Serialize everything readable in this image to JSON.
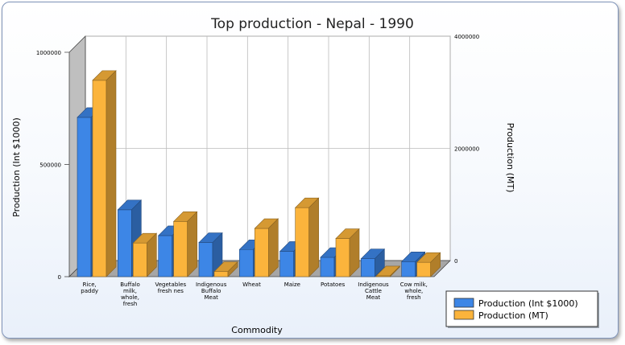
{
  "chart_data": {
    "type": "bar",
    "title": "Top production - Nepal - 1990",
    "xlabel": "Commodity",
    "ylabel_left": "Production (Int $1000)",
    "ylabel_right": "Production (MT)",
    "categories": [
      [
        "Rice,",
        "paddy"
      ],
      [
        "Buffalo",
        "milk,",
        "whole,",
        "fresh"
      ],
      [
        "Vegetables",
        "fresh nes"
      ],
      [
        "Indigenous",
        "Buffalo",
        "Meat"
      ],
      [
        "Wheat"
      ],
      [
        "Maize"
      ],
      [
        "Potatoes"
      ],
      [
        "Indigenous",
        "Cattle",
        "Meat"
      ],
      [
        "Cow milk,",
        "whole,",
        "fresh"
      ]
    ],
    "series": [
      {
        "name": "Production (Int $1000)",
        "axis": "left",
        "color": "#3d86e6",
        "values": [
          710000,
          298000,
          183000,
          152000,
          121000,
          113000,
          86000,
          80000,
          67000
        ]
      },
      {
        "name": "Production (MT)",
        "axis": "right",
        "color": "#fbb43c",
        "values": [
          3500000,
          600000,
          985000,
          90000,
          860000,
          1230000,
          680000,
          15000,
          255000
        ]
      }
    ],
    "ylim_left": [
      0,
      1000000
    ],
    "ylim_right": [
      0,
      4000000
    ],
    "left_ticks": [
      "0",
      "500000",
      "1000000"
    ],
    "right_ticks": [
      "0",
      "2000000",
      "4000000"
    ],
    "legend_position": "bottom-right"
  }
}
